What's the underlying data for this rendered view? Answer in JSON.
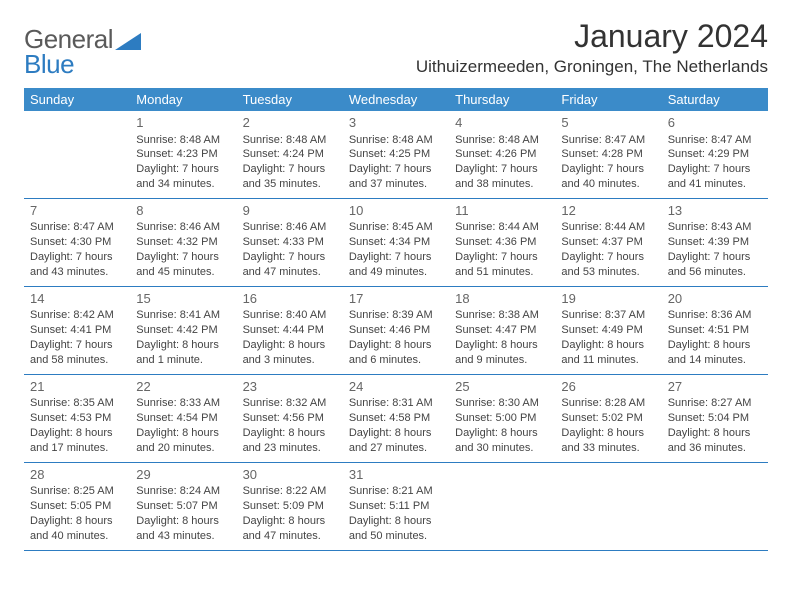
{
  "logo": {
    "word1": "General",
    "word2": "Blue"
  },
  "title": "January 2024",
  "location": "Uithuizermeeden, Groningen, The Netherlands",
  "colors": {
    "header_bg": "#3b8bc9",
    "rule": "#2d7cc1",
    "text": "#444444",
    "title": "#333333",
    "logo_gray": "#5a5a5a",
    "logo_blue": "#2d7cc1"
  },
  "day_names": [
    "Sunday",
    "Monday",
    "Tuesday",
    "Wednesday",
    "Thursday",
    "Friday",
    "Saturday"
  ],
  "weeks": [
    [
      null,
      {
        "n": "1",
        "sr": "8:48 AM",
        "ss": "4:23 PM",
        "dl": "7 hours and 34 minutes."
      },
      {
        "n": "2",
        "sr": "8:48 AM",
        "ss": "4:24 PM",
        "dl": "7 hours and 35 minutes."
      },
      {
        "n": "3",
        "sr": "8:48 AM",
        "ss": "4:25 PM",
        "dl": "7 hours and 37 minutes."
      },
      {
        "n": "4",
        "sr": "8:48 AM",
        "ss": "4:26 PM",
        "dl": "7 hours and 38 minutes."
      },
      {
        "n": "5",
        "sr": "8:47 AM",
        "ss": "4:28 PM",
        "dl": "7 hours and 40 minutes."
      },
      {
        "n": "6",
        "sr": "8:47 AM",
        "ss": "4:29 PM",
        "dl": "7 hours and 41 minutes."
      }
    ],
    [
      {
        "n": "7",
        "sr": "8:47 AM",
        "ss": "4:30 PM",
        "dl": "7 hours and 43 minutes."
      },
      {
        "n": "8",
        "sr": "8:46 AM",
        "ss": "4:32 PM",
        "dl": "7 hours and 45 minutes."
      },
      {
        "n": "9",
        "sr": "8:46 AM",
        "ss": "4:33 PM",
        "dl": "7 hours and 47 minutes."
      },
      {
        "n": "10",
        "sr": "8:45 AM",
        "ss": "4:34 PM",
        "dl": "7 hours and 49 minutes."
      },
      {
        "n": "11",
        "sr": "8:44 AM",
        "ss": "4:36 PM",
        "dl": "7 hours and 51 minutes."
      },
      {
        "n": "12",
        "sr": "8:44 AM",
        "ss": "4:37 PM",
        "dl": "7 hours and 53 minutes."
      },
      {
        "n": "13",
        "sr": "8:43 AM",
        "ss": "4:39 PM",
        "dl": "7 hours and 56 minutes."
      }
    ],
    [
      {
        "n": "14",
        "sr": "8:42 AM",
        "ss": "4:41 PM",
        "dl": "7 hours and 58 minutes."
      },
      {
        "n": "15",
        "sr": "8:41 AM",
        "ss": "4:42 PM",
        "dl": "8 hours and 1 minute."
      },
      {
        "n": "16",
        "sr": "8:40 AM",
        "ss": "4:44 PM",
        "dl": "8 hours and 3 minutes."
      },
      {
        "n": "17",
        "sr": "8:39 AM",
        "ss": "4:46 PM",
        "dl": "8 hours and 6 minutes."
      },
      {
        "n": "18",
        "sr": "8:38 AM",
        "ss": "4:47 PM",
        "dl": "8 hours and 9 minutes."
      },
      {
        "n": "19",
        "sr": "8:37 AM",
        "ss": "4:49 PM",
        "dl": "8 hours and 11 minutes."
      },
      {
        "n": "20",
        "sr": "8:36 AM",
        "ss": "4:51 PM",
        "dl": "8 hours and 14 minutes."
      }
    ],
    [
      {
        "n": "21",
        "sr": "8:35 AM",
        "ss": "4:53 PM",
        "dl": "8 hours and 17 minutes."
      },
      {
        "n": "22",
        "sr": "8:33 AM",
        "ss": "4:54 PM",
        "dl": "8 hours and 20 minutes."
      },
      {
        "n": "23",
        "sr": "8:32 AM",
        "ss": "4:56 PM",
        "dl": "8 hours and 23 minutes."
      },
      {
        "n": "24",
        "sr": "8:31 AM",
        "ss": "4:58 PM",
        "dl": "8 hours and 27 minutes."
      },
      {
        "n": "25",
        "sr": "8:30 AM",
        "ss": "5:00 PM",
        "dl": "8 hours and 30 minutes."
      },
      {
        "n": "26",
        "sr": "8:28 AM",
        "ss": "5:02 PM",
        "dl": "8 hours and 33 minutes."
      },
      {
        "n": "27",
        "sr": "8:27 AM",
        "ss": "5:04 PM",
        "dl": "8 hours and 36 minutes."
      }
    ],
    [
      {
        "n": "28",
        "sr": "8:25 AM",
        "ss": "5:05 PM",
        "dl": "8 hours and 40 minutes."
      },
      {
        "n": "29",
        "sr": "8:24 AM",
        "ss": "5:07 PM",
        "dl": "8 hours and 43 minutes."
      },
      {
        "n": "30",
        "sr": "8:22 AM",
        "ss": "5:09 PM",
        "dl": "8 hours and 47 minutes."
      },
      {
        "n": "31",
        "sr": "8:21 AM",
        "ss": "5:11 PM",
        "dl": "8 hours and 50 minutes."
      },
      null,
      null,
      null
    ]
  ],
  "labels": {
    "sunrise": "Sunrise:",
    "sunset": "Sunset:",
    "daylight": "Daylight:"
  }
}
